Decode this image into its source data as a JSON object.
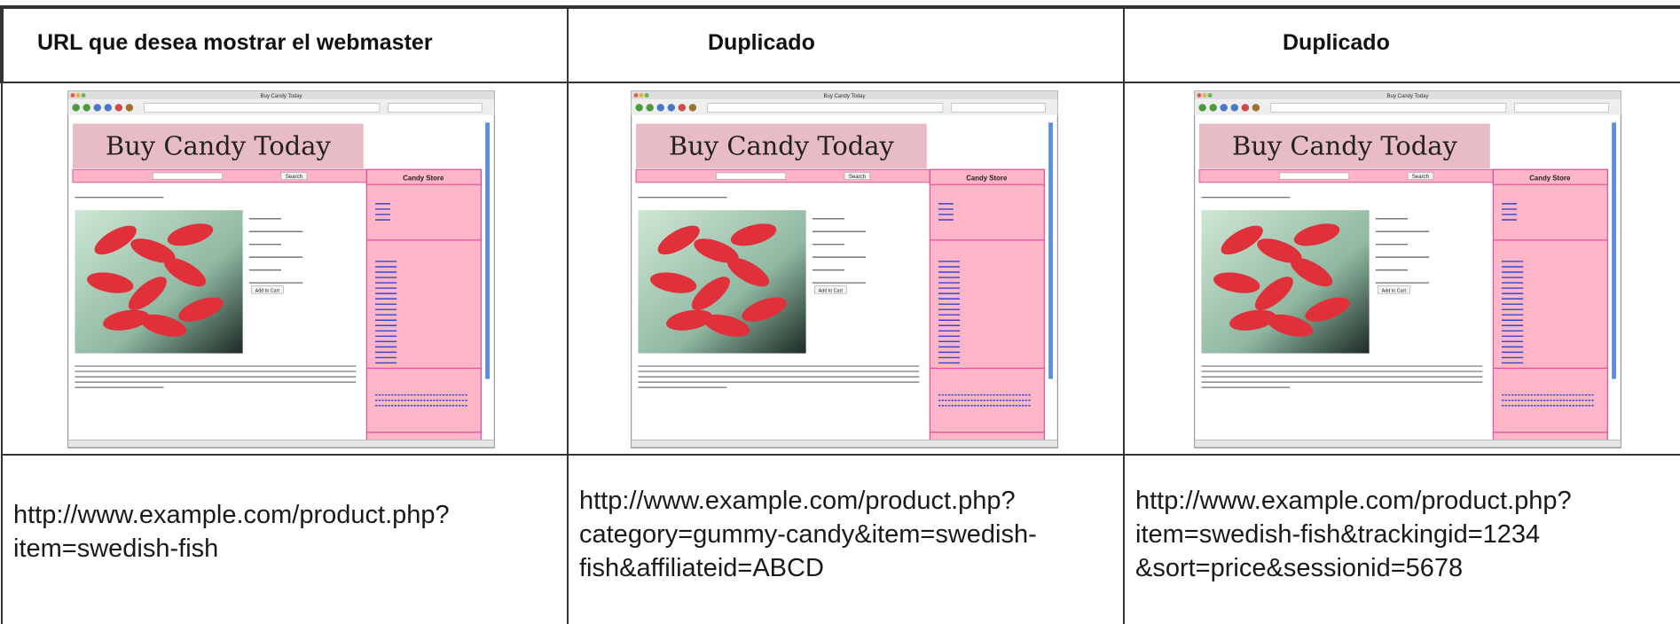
{
  "table": {
    "header": [
      "URL que desea mostrar el webmaster",
      "Duplicado",
      "Duplicado"
    ],
    "screenshots": [
      {
        "window_title": "Buy Candy Today",
        "banner": "Buy Candy Today",
        "sidebar_title": "Candy Store",
        "search_button": "Search",
        "add_to_cart": "Add to Cart"
      },
      {
        "window_title": "Buy Candy Today",
        "banner": "Buy Candy Today",
        "sidebar_title": "Candy Store",
        "search_button": "Search",
        "add_to_cart": "Add to Cart"
      },
      {
        "window_title": "Buy Candy Today",
        "banner": "Buy Candy Today",
        "sidebar_title": "Candy Store",
        "search_button": "Search",
        "add_to_cart": "Add to Cart"
      }
    ],
    "urls": [
      [
        "http://www.example.com/product.php?",
        "item=swedish-fish"
      ],
      [
        "http://www.example.com/product.php?",
        "category=gummy-candy&item=swedish-",
        "fish&affiliateid=ABCD"
      ],
      [
        "http://www.example.com/product.php?",
        "item=swedish-fish&trackingid=1234",
        "&sort=price&sessionid=5678"
      ]
    ]
  }
}
